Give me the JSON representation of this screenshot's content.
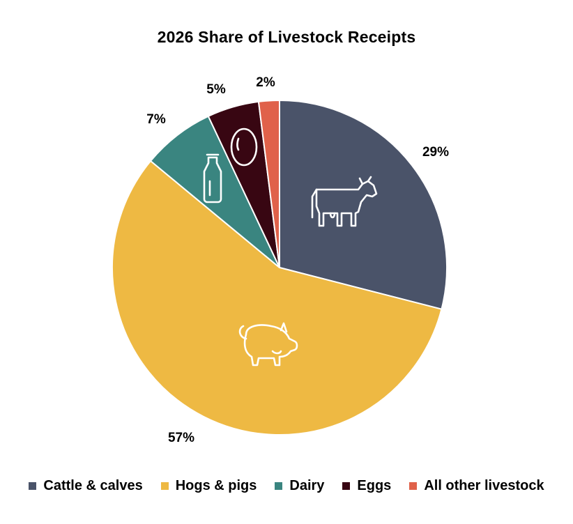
{
  "chart_data": {
    "type": "pie",
    "title": "2026 Share of Livestock Receipts",
    "slices": [
      {
        "label": "Cattle & calves",
        "value": 29,
        "display": "29%",
        "color": "#4a5369",
        "icon": "cow-icon"
      },
      {
        "label": "Hogs & pigs",
        "value": 57,
        "display": "57%",
        "color": "#eeb943",
        "icon": "pig-icon"
      },
      {
        "label": "Dairy",
        "value": 7,
        "display": "7%",
        "color": "#3a8580",
        "icon": "milk-bottle-icon"
      },
      {
        "label": "Eggs",
        "value": 5,
        "display": "5%",
        "color": "#380612",
        "icon": "egg-icon"
      },
      {
        "label": "All other livestock",
        "value": 2,
        "display": "2%",
        "color": "#e0614a",
        "icon": ""
      }
    ],
    "start_angle": "12 o'clock",
    "direction": "clockwise",
    "legend_position": "bottom"
  }
}
